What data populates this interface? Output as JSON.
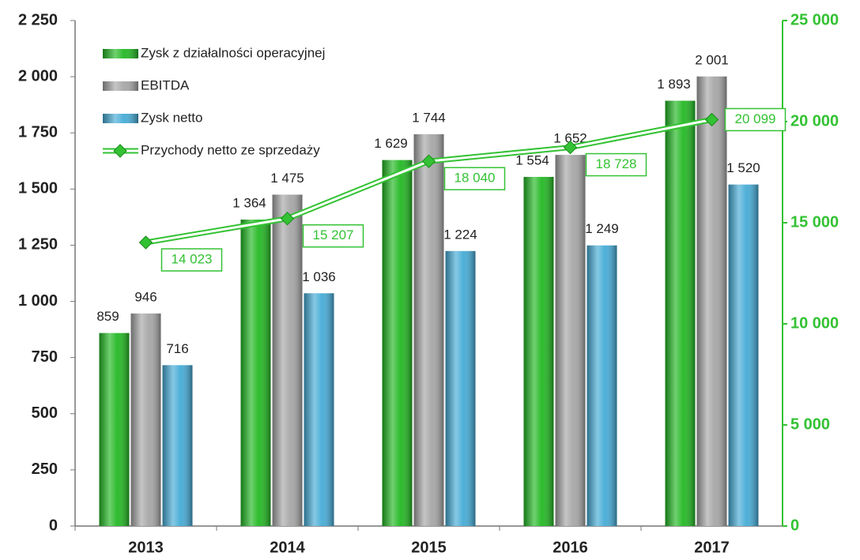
{
  "chart_data": {
    "type": "bar",
    "categories": [
      "2013",
      "2014",
      "2015",
      "2016",
      "2017"
    ],
    "series": [
      {
        "name": "Zysk z działalności operacyjnej",
        "color": "#22b822",
        "values": [
          859,
          1364,
          1629,
          1554,
          1893
        ],
        "value_labels": [
          "859",
          "1 364",
          "1 629",
          "1 554",
          "1 893"
        ]
      },
      {
        "name": "EBITDA",
        "color": "#a6a6a6",
        "values": [
          946,
          1475,
          1744,
          1652,
          2001
        ],
        "value_labels": [
          "946",
          "1 475",
          "1 744",
          "1 652",
          "2 001"
        ]
      },
      {
        "name": "Zysk netto",
        "color": "#45abd6",
        "values": [
          716,
          1036,
          1224,
          1249,
          1520
        ],
        "value_labels": [
          "716",
          "1 036",
          "1 224",
          "1 249",
          "1 520"
        ]
      },
      {
        "name": "Przychody netto ze sprzedaży",
        "type": "line",
        "axis": "y2",
        "color": "#33c233",
        "values": [
          14023,
          15207,
          18040,
          18728,
          20099
        ],
        "value_labels": [
          "14 023",
          "15 207",
          "18 040",
          "18 728",
          "20 099"
        ]
      }
    ],
    "ylim": [
      0,
      2250
    ],
    "yticks": [
      0,
      250,
      500,
      750,
      {
        "value": 1000,
        "label": "1 000"
      },
      {
        "value": 1250,
        "label": "1 250"
      },
      {
        "value": 1500,
        "label": "1 500"
      },
      {
        "value": 1750,
        "label": "1 750"
      },
      {
        "value": 2000,
        "label": "2 000"
      },
      {
        "value": 2250,
        "label": "2 250"
      }
    ],
    "y2lim": [
      0,
      25000
    ],
    "y2ticks": [
      0,
      {
        "value": 5000,
        "label": "5 000"
      },
      {
        "value": 10000,
        "label": "10 000"
      },
      {
        "value": 15000,
        "label": "15 000"
      },
      {
        "value": 20000,
        "label": "20 000"
      },
      {
        "value": 25000,
        "label": "25 000"
      }
    ],
    "y2color": "#33c233",
    "legend": "upper left"
  }
}
